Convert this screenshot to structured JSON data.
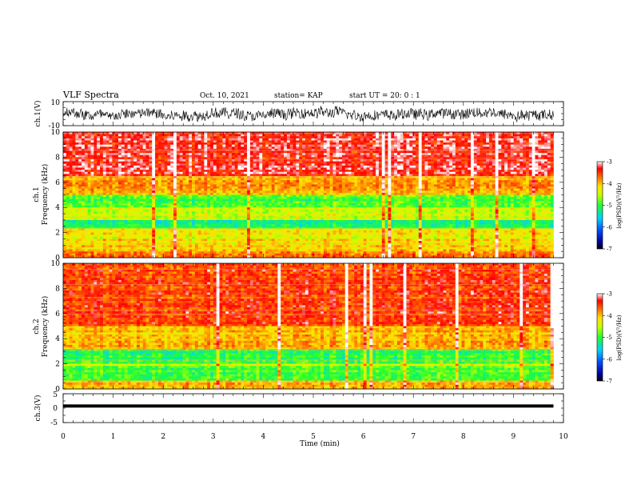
{
  "header": {
    "title": "VLF Spectra",
    "date": "Oct. 10, 2021",
    "station": "station= KAP",
    "start_ut": "start  UT =   20: 0  : 1"
  },
  "chart_data": [
    {
      "type": "line",
      "ylabel": "ch.1(V)",
      "xlim": [
        0,
        10
      ],
      "ylim": [
        -10,
        10
      ],
      "yticks": [
        "10",
        "-10"
      ],
      "description_of_signal": "noisy waveform spanning roughly -8 to +8 V across 0–9.8 min"
    },
    {
      "type": "heatmap",
      "ylabel_lines": [
        "ch.1",
        "Frequency  (kHz)"
      ],
      "xlim": [
        0,
        10
      ],
      "ylim": [
        0,
        10
      ],
      "yticks": [
        "0",
        "2",
        "4",
        "6",
        "8",
        "10"
      ],
      "data_end_min": 9.8,
      "bands": [
        {
          "from_khz": 6.5,
          "to_khz": 10,
          "level": -3.3
        },
        {
          "from_khz": 5.0,
          "to_khz": 6.5,
          "level": -3.9
        },
        {
          "from_khz": 4.0,
          "to_khz": 5.0,
          "level": -4.9
        },
        {
          "from_khz": 3.0,
          "to_khz": 4.0,
          "level": -4.5
        },
        {
          "from_khz": 2.3,
          "to_khz": 3.0,
          "level": -5.2
        },
        {
          "from_khz": 1.5,
          "to_khz": 2.3,
          "level": -4.3
        },
        {
          "from_khz": 0.5,
          "to_khz": 1.5,
          "level": -4.1
        },
        {
          "from_khz": 0.0,
          "to_khz": 0.5,
          "level": -3.8
        }
      ],
      "colorbar": {
        "label": "log(PSD)(V²/Hz)",
        "range": [
          -7,
          -3
        ],
        "ticks": [
          "-3",
          "-4",
          "-5",
          "-6",
          "-7"
        ]
      }
    },
    {
      "type": "heatmap",
      "ylabel_lines": [
        "ch.2",
        "Frequency  (kHz)"
      ],
      "xlim": [
        0,
        10
      ],
      "ylim": [
        0,
        10
      ],
      "yticks": [
        "0",
        "2",
        "4",
        "6",
        "8",
        "10"
      ],
      "data_end_min": 9.8,
      "bands": [
        {
          "from_khz": 5.0,
          "to_khz": 10,
          "level": -3.5
        },
        {
          "from_khz": 3.2,
          "to_khz": 5.0,
          "level": -4.0
        },
        {
          "from_khz": 2.0,
          "to_khz": 3.2,
          "level": -5.0
        },
        {
          "from_khz": 1.8,
          "to_khz": 2.0,
          "level": -4.3
        },
        {
          "from_khz": 0.6,
          "to_khz": 1.8,
          "level": -4.9
        },
        {
          "from_khz": 0.0,
          "to_khz": 0.6,
          "level": -4.0
        }
      ],
      "colorbar": {
        "label": "log(PSD)(V²/Hz)",
        "range": [
          -7,
          -3
        ],
        "ticks": [
          "-3",
          "-4",
          "-5",
          "-6",
          "-7"
        ]
      }
    },
    {
      "type": "line",
      "ylabel": "ch.3(V)",
      "xlim": [
        0,
        10
      ],
      "ylim": [
        -5,
        5
      ],
      "yticks": [
        "5",
        "0",
        "-5"
      ],
      "xlabel": "Time  (min)",
      "xticks": [
        "0",
        "1",
        "2",
        "3",
        "4",
        "5",
        "6",
        "7",
        "8",
        "9",
        "10"
      ],
      "signal_band_v": [
        0.2,
        1.3
      ],
      "data_end_min": 9.8
    }
  ]
}
